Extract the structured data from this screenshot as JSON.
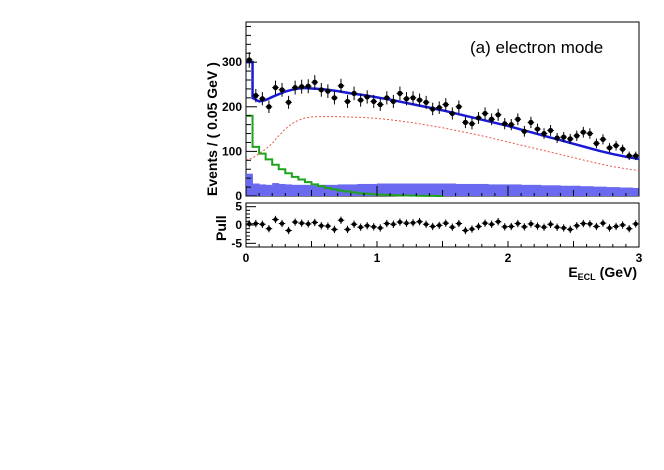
{
  "chart_data": [
    {
      "panel": "main",
      "type": "histogram",
      "annotation": "(a) electron mode",
      "ylabel": "Events / ( 0.05 GeV )",
      "xlim": [
        0,
        3
      ],
      "ylim": [
        0,
        390
      ],
      "yticks": [
        0,
        100,
        200,
        300
      ],
      "colors": {
        "data": "#000000",
        "total_fit": "#1a1ad6",
        "background_dashed": "#e8584a",
        "green_component": "#1fa31f",
        "blue_filled": "#6a6af0"
      },
      "data_points": {
        "bin_width": 0.05,
        "x_centers": [
          0.025,
          0.075,
          0.125,
          0.175,
          0.225,
          0.275,
          0.325,
          0.375,
          0.425,
          0.475,
          0.525,
          0.575,
          0.625,
          0.675,
          0.725,
          0.775,
          0.825,
          0.875,
          0.925,
          0.975,
          1.025,
          1.075,
          1.125,
          1.175,
          1.225,
          1.275,
          1.325,
          1.375,
          1.425,
          1.475,
          1.525,
          1.575,
          1.625,
          1.675,
          1.725,
          1.775,
          1.825,
          1.875,
          1.925,
          1.975,
          2.025,
          2.075,
          2.125,
          2.175,
          2.225,
          2.275,
          2.325,
          2.375,
          2.425,
          2.475,
          2.525,
          2.575,
          2.625,
          2.675,
          2.725,
          2.775,
          2.825,
          2.875,
          2.925,
          2.975
        ],
        "y": [
          305,
          225,
          218,
          200,
          243,
          238,
          210,
          243,
          245,
          246,
          255,
          238,
          235,
          220,
          247,
          212,
          230,
          215,
          222,
          212,
          205,
          220,
          212,
          230,
          218,
          220,
          215,
          210,
          195,
          198,
          205,
          185,
          200,
          165,
          162,
          175,
          185,
          172,
          182,
          162,
          160,
          172,
          145,
          165,
          150,
          140,
          147,
          130,
          132,
          128,
          135,
          143,
          140,
          118,
          127,
          108,
          113,
          105,
          90,
          90
        ],
        "error": [
          17.5,
          15,
          14.8,
          14.1,
          15.6,
          15.4,
          14.5,
          15.6,
          15.7,
          15.7,
          16,
          15.4,
          15.3,
          14.8,
          15.7,
          14.6,
          15.2,
          14.7,
          14.9,
          14.6,
          14.3,
          14.8,
          14.6,
          15.2,
          14.8,
          14.8,
          14.7,
          14.5,
          14,
          14.1,
          14.3,
          13.6,
          14.1,
          12.8,
          12.7,
          13.2,
          13.6,
          13.1,
          13.5,
          12.7,
          12.6,
          13.1,
          12,
          12.8,
          12.2,
          11.8,
          12.1,
          11.4,
          11.5,
          11.3,
          11.6,
          12,
          11.8,
          10.9,
          11.3,
          10.4,
          10.6,
          10.2,
          9.5,
          9.5
        ]
      },
      "total_fit": {
        "x": [
          0,
          0.05,
          0.05,
          0.1,
          0.15,
          0.2,
          0.25,
          0.3,
          0.35,
          0.4,
          0.45,
          0.5,
          0.55,
          0.6,
          0.7,
          0.8,
          0.9,
          1.0,
          1.1,
          1.2,
          1.3,
          1.4,
          1.5,
          1.6,
          1.7,
          1.8,
          1.9,
          2.0,
          2.1,
          2.2,
          2.3,
          2.4,
          2.5,
          2.6,
          2.7,
          2.8,
          2.9,
          3.0
        ],
        "y": [
          300,
          300,
          220,
          212,
          215,
          222,
          228,
          234,
          238,
          241,
          242,
          241,
          240,
          239,
          235,
          230,
          226,
          221,
          216,
          210,
          204,
          198,
          192,
          185,
          178,
          171,
          164,
          157,
          149,
          141,
          133,
          125,
          117,
          109,
          101,
          94,
          88,
          83
        ]
      },
      "background_dashed": {
        "x": [
          0,
          0.05,
          0.1,
          0.15,
          0.2,
          0.25,
          0.3,
          0.35,
          0.4,
          0.45,
          0.5,
          0.55,
          0.6,
          0.7,
          0.8,
          0.9,
          1.0,
          1.1,
          1.2,
          1.3,
          1.4,
          1.5,
          1.6,
          1.7,
          1.8,
          1.9,
          2.0,
          2.1,
          2.2,
          2.3,
          2.4,
          2.5,
          2.6,
          2.7,
          2.8,
          2.9,
          3.0
        ],
        "y": [
          80,
          85,
          95,
          105,
          118,
          135,
          150,
          162,
          170,
          175,
          177,
          178,
          178,
          178,
          177,
          176,
          174,
          171,
          167,
          163,
          158,
          153,
          147,
          141,
          135,
          128,
          121,
          114,
          107,
          100,
          93,
          86,
          79,
          72,
          66,
          61,
          57
        ]
      },
      "green_component": {
        "bin_edges": [
          0,
          0.05,
          0.1,
          0.15,
          0.2,
          0.25,
          0.3,
          0.35,
          0.4,
          0.45,
          0.5,
          0.55,
          0.6,
          0.65,
          0.7,
          0.75,
          0.8,
          0.85,
          0.9,
          0.95,
          1.0,
          1.05,
          1.1,
          1.15,
          1.2,
          1.25,
          1.3,
          1.35,
          1.4,
          1.45,
          1.5
        ],
        "y": [
          180,
          110,
          95,
          82,
          70,
          60,
          51,
          43,
          37,
          31,
          26,
          22,
          18,
          15,
          12,
          10,
          8,
          6,
          5,
          4,
          3,
          2.5,
          2,
          1.5,
          1,
          0.8,
          0.6,
          0.4,
          0.2,
          0.1
        ]
      },
      "blue_filled": {
        "bin_edges": [
          0,
          0.05,
          0.1,
          0.15,
          0.2,
          0.25,
          0.3,
          0.35,
          0.4,
          0.45,
          0.5,
          0.55,
          0.6,
          0.65,
          0.7,
          0.75,
          0.8,
          0.85,
          0.9,
          0.95,
          1.0,
          1.05,
          1.1,
          1.15,
          1.2,
          1.25,
          1.3,
          1.35,
          1.4,
          1.45,
          1.5,
          1.55,
          1.6,
          1.65,
          1.7,
          1.75,
          1.8,
          1.85,
          1.9,
          1.95,
          2.0,
          2.05,
          2.1,
          2.15,
          2.2,
          2.25,
          2.3,
          2.35,
          2.4,
          2.45,
          2.5,
          2.55,
          2.6,
          2.65,
          2.7,
          2.75,
          2.8,
          2.85,
          2.9,
          2.95,
          3.0
        ],
        "y": [
          50,
          28,
          26,
          25,
          29,
          27,
          26,
          25,
          25,
          25,
          24,
          25,
          25,
          25,
          26,
          26,
          26,
          27,
          27,
          27,
          28,
          28,
          28,
          28,
          28,
          28,
          28,
          28,
          28,
          28,
          28,
          28,
          27,
          27,
          27,
          27,
          27,
          26,
          26,
          26,
          26,
          26,
          25,
          25,
          25,
          24,
          24,
          24,
          23,
          23,
          23,
          22,
          22,
          21,
          21,
          20,
          20,
          19,
          19,
          18
        ]
      }
    },
    {
      "panel": "pull",
      "type": "scatter",
      "ylabel": "Pull",
      "xlabel_main": "E",
      "xlabel_sub": "ECL",
      "xlabel_unit": "(GeV)",
      "xlim": [
        0,
        3
      ],
      "ylim": [
        -6,
        6
      ],
      "yticks": [
        -5,
        0,
        5
      ],
      "xticks": [
        0,
        1,
        2,
        3
      ],
      "x": [
        0.025,
        0.075,
        0.125,
        0.175,
        0.225,
        0.275,
        0.325,
        0.375,
        0.425,
        0.475,
        0.525,
        0.575,
        0.625,
        0.675,
        0.725,
        0.775,
        0.825,
        0.875,
        0.925,
        0.975,
        1.025,
        1.075,
        1.125,
        1.175,
        1.225,
        1.275,
        1.325,
        1.375,
        1.425,
        1.475,
        1.525,
        1.575,
        1.625,
        1.675,
        1.725,
        1.775,
        1.825,
        1.875,
        1.925,
        1.975,
        2.025,
        2.075,
        2.125,
        2.175,
        2.225,
        2.275,
        2.325,
        2.375,
        2.425,
        2.475,
        2.525,
        2.575,
        2.625,
        2.675,
        2.725,
        2.775,
        2.825,
        2.875,
        2.925,
        2.975
      ],
      "values": [
        0.3,
        0.4,
        0.2,
        -1.0,
        1.5,
        0.4,
        -1.5,
        0.8,
        0.5,
        0.3,
        0.7,
        -0.2,
        -0.3,
        -1.2,
        1.3,
        -1.2,
        0.2,
        -0.6,
        -0.2,
        -0.5,
        -0.8,
        0.4,
        0.2,
        0.8,
        0.5,
        0.6,
        0.9,
        0.2,
        -0.4,
        -0.1,
        0.5,
        -0.6,
        0.4,
        -1.5,
        -1.1,
        -0.4,
        0.5,
        0.2,
        0.9,
        -0.5,
        -0.4,
        0.4,
        -0.5,
        0.3,
        -0.3,
        -0.6,
        0.2,
        -0.6,
        -0.8,
        -1.2,
        -0.2,
        0.4,
        0.3,
        -0.4,
        0.5,
        -0.8,
        -0.4,
        0.0,
        -1.0,
        0.3
      ]
    }
  ]
}
